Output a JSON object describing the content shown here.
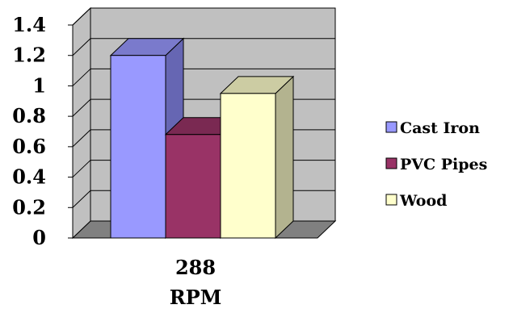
{
  "chart_data": {
    "type": "bar",
    "categories": [
      "288 RPM"
    ],
    "category_lines": [
      "288",
      "RPM"
    ],
    "series": [
      {
        "name": "Cast Iron",
        "values": [
          1.2
        ],
        "color": "#9999ff",
        "side_color": "#6666b3",
        "top_color": "#7a7acc"
      },
      {
        "name": "PVC Pipes",
        "values": [
          0.68
        ],
        "color": "#993366",
        "side_color": "#6b2447",
        "top_color": "#7a2952"
      },
      {
        "name": "Wood",
        "values": [
          0.95
        ],
        "color": "#ffffcc",
        "side_color": "#b3b38f",
        "top_color": "#cccca3"
      }
    ],
    "ylim": [
      0,
      1.4
    ],
    "yticks": [
      "0",
      "0.2",
      "0.4",
      "0.6",
      "0.8",
      "1",
      "1.2",
      "1.4"
    ],
    "ytick_values": [
      0,
      0.2,
      0.4,
      0.6,
      0.8,
      1,
      1.2,
      1.4
    ],
    "grid": true,
    "legend_position": "right",
    "wall_color": "#c0c0c0",
    "floor_color": "#808080"
  }
}
